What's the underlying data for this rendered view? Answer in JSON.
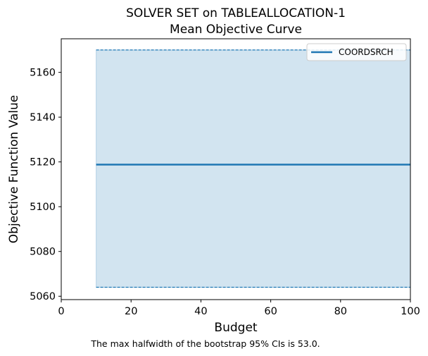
{
  "chart_data": {
    "type": "line",
    "title_line1": "SOLVER SET on TABLEALLOCATION-1",
    "title_line2": "Mean Objective Curve",
    "xlabel": "Budget",
    "ylabel": "Objective Function Value",
    "xlim": [
      0,
      100
    ],
    "ylim": [
      5058.5,
      5175
    ],
    "xticks": [
      0,
      20,
      40,
      60,
      80,
      100
    ],
    "yticks": [
      5060,
      5080,
      5100,
      5120,
      5140,
      5160
    ],
    "grid": false,
    "legend_position": "top-right",
    "series": [
      {
        "name": "COORDSRCH",
        "color": "#1f77b4",
        "x": [
          10,
          100
        ],
        "y": [
          5118.8,
          5118.8
        ],
        "ci_lower": [
          5064,
          5064
        ],
        "ci_upper": [
          5170,
          5170
        ]
      }
    ],
    "footnote": "The max halfwidth of the bootstrap 95% CIs is 53.0."
  }
}
